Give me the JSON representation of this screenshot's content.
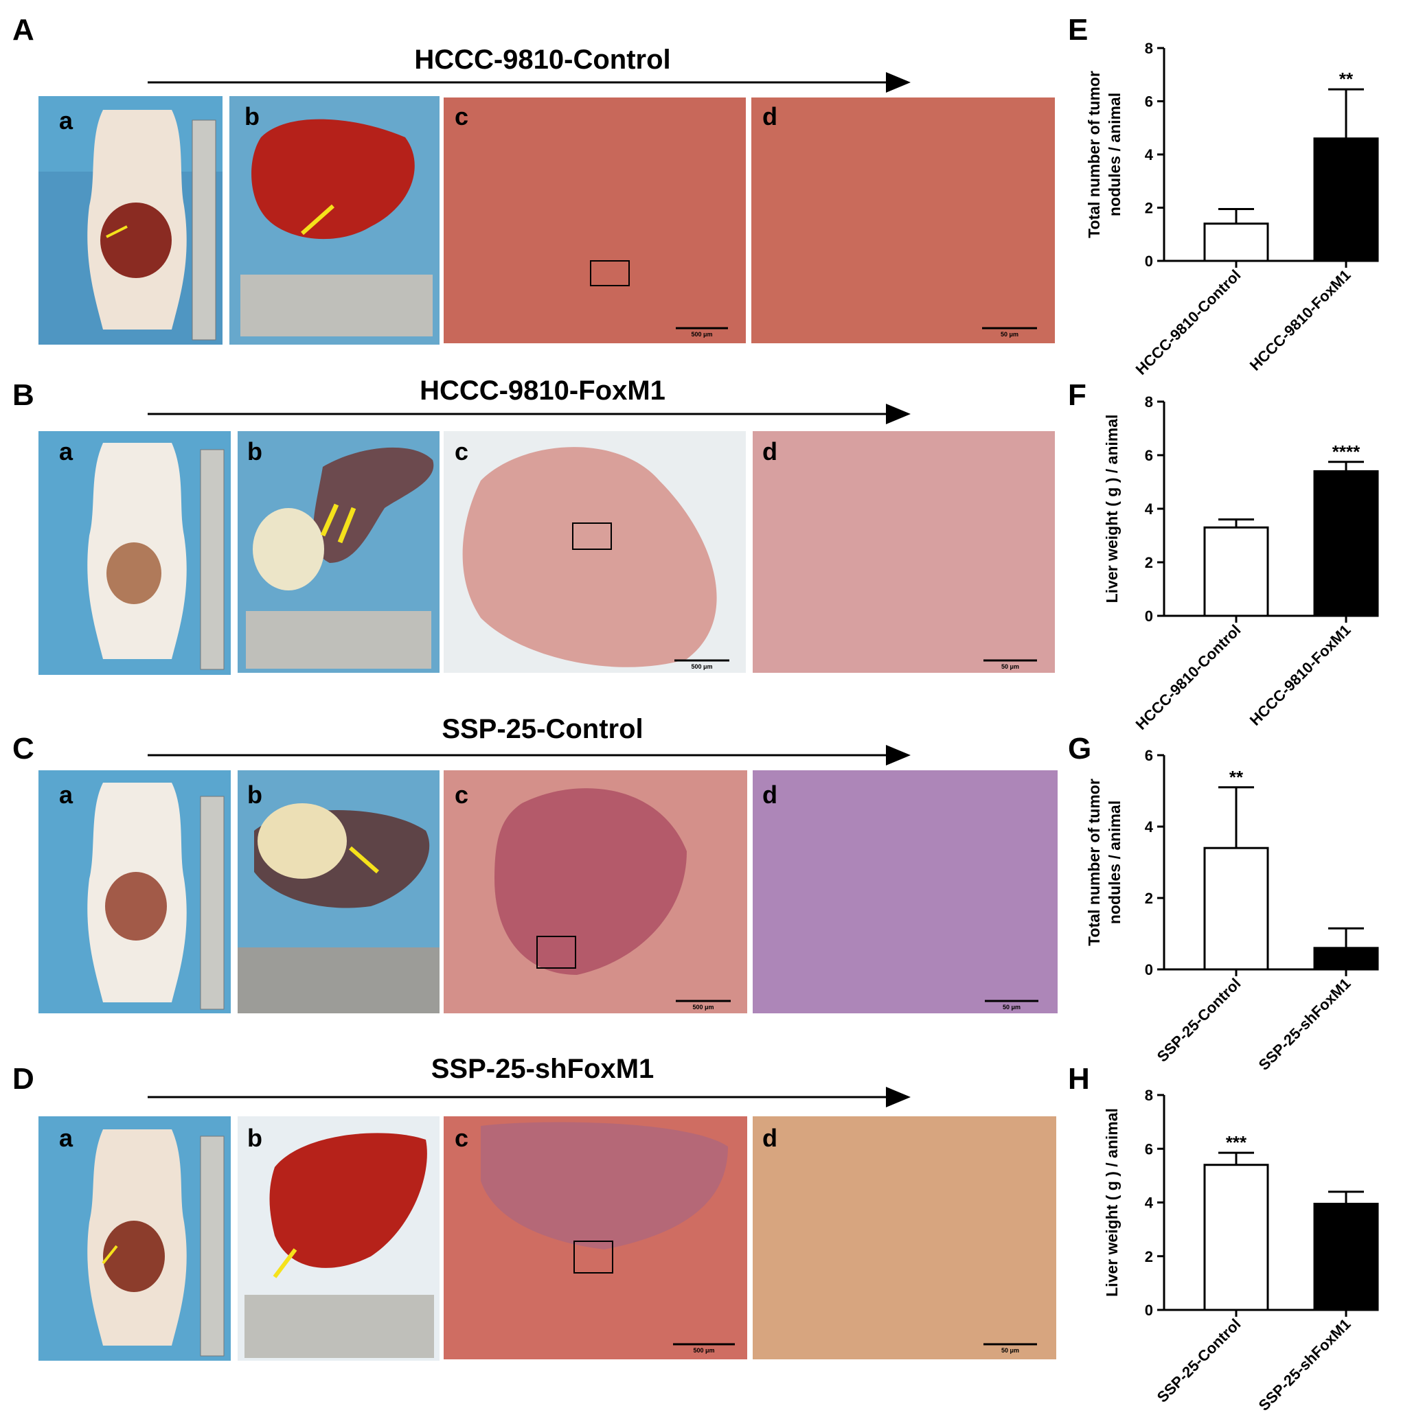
{
  "rows": [
    {
      "label": "A",
      "title": "HCCC-9810-Control",
      "sub": [
        "a",
        "b",
        "c",
        "d"
      ],
      "scale_c": "500 μm",
      "scale_d": "50 μm"
    },
    {
      "label": "B",
      "title": "HCCC-9810-FoxM1",
      "sub": [
        "a",
        "b",
        "c",
        "d"
      ],
      "scale_c": "500 μm",
      "scale_d": "50 μm"
    },
    {
      "label": "C",
      "title": "SSP-25-Control",
      "sub": [
        "a",
        "b",
        "c",
        "d"
      ],
      "scale_c": "500 μm",
      "scale_d": "50 μm"
    },
    {
      "label": "D",
      "title": "SSP-25-shFoxM1",
      "sub": [
        "a",
        "b",
        "c",
        "d"
      ],
      "scale_c": "500 μm",
      "scale_d": "50 μm"
    }
  ],
  "colors": {
    "drape_blue": "#5aa6cf",
    "he_pink": "#c8685a",
    "arrow_yellow": "#f5e21b",
    "arrow_red": "#d9362b"
  },
  "chart_data": [
    {
      "label": "E",
      "type": "bar",
      "categories": [
        "HCCC-9810-Control",
        "HCCC-9810-FoxM1"
      ],
      "values": [
        1.4,
        4.6
      ],
      "errors": [
        0.55,
        1.85
      ],
      "ylabel": "Total number of tumor nodules / animal",
      "ylim": [
        0,
        8
      ],
      "yticks": [
        0,
        2,
        4,
        6,
        8
      ],
      "significance": [
        "",
        "**"
      ],
      "fills": [
        "#ffffff",
        "#000000"
      ]
    },
    {
      "label": "F",
      "type": "bar",
      "categories": [
        "HCCC-9810-Control",
        "HCCC-9810-FoxM1"
      ],
      "values": [
        3.3,
        5.4
      ],
      "errors": [
        0.3,
        0.35
      ],
      "ylabel": "Liver weight ( g ) / animal",
      "ylim": [
        0,
        8
      ],
      "yticks": [
        0,
        2,
        4,
        6,
        8
      ],
      "significance": [
        "",
        "****"
      ],
      "fills": [
        "#ffffff",
        "#000000"
      ]
    },
    {
      "label": "G",
      "type": "bar",
      "categories": [
        "SSP-25-Control",
        "SSP-25-shFoxM1"
      ],
      "values": [
        3.4,
        0.6
      ],
      "errors": [
        1.7,
        0.55
      ],
      "ylabel": "Total number of tumor nodules / animal",
      "ylim": [
        0,
        6
      ],
      "yticks": [
        0,
        2,
        4,
        6
      ],
      "significance": [
        "**",
        ""
      ],
      "fills": [
        "#ffffff",
        "#000000"
      ]
    },
    {
      "label": "H",
      "type": "bar",
      "categories": [
        "SSP-25-Control",
        "SSP-25-shFoxM1"
      ],
      "values": [
        5.4,
        3.95
      ],
      "errors": [
        0.45,
        0.45
      ],
      "ylabel": "Liver weight ( g ) / animal",
      "ylim": [
        0,
        8
      ],
      "yticks": [
        0,
        2,
        4,
        6,
        8
      ],
      "significance": [
        "***",
        ""
      ],
      "fills": [
        "#ffffff",
        "#000000"
      ]
    }
  ]
}
